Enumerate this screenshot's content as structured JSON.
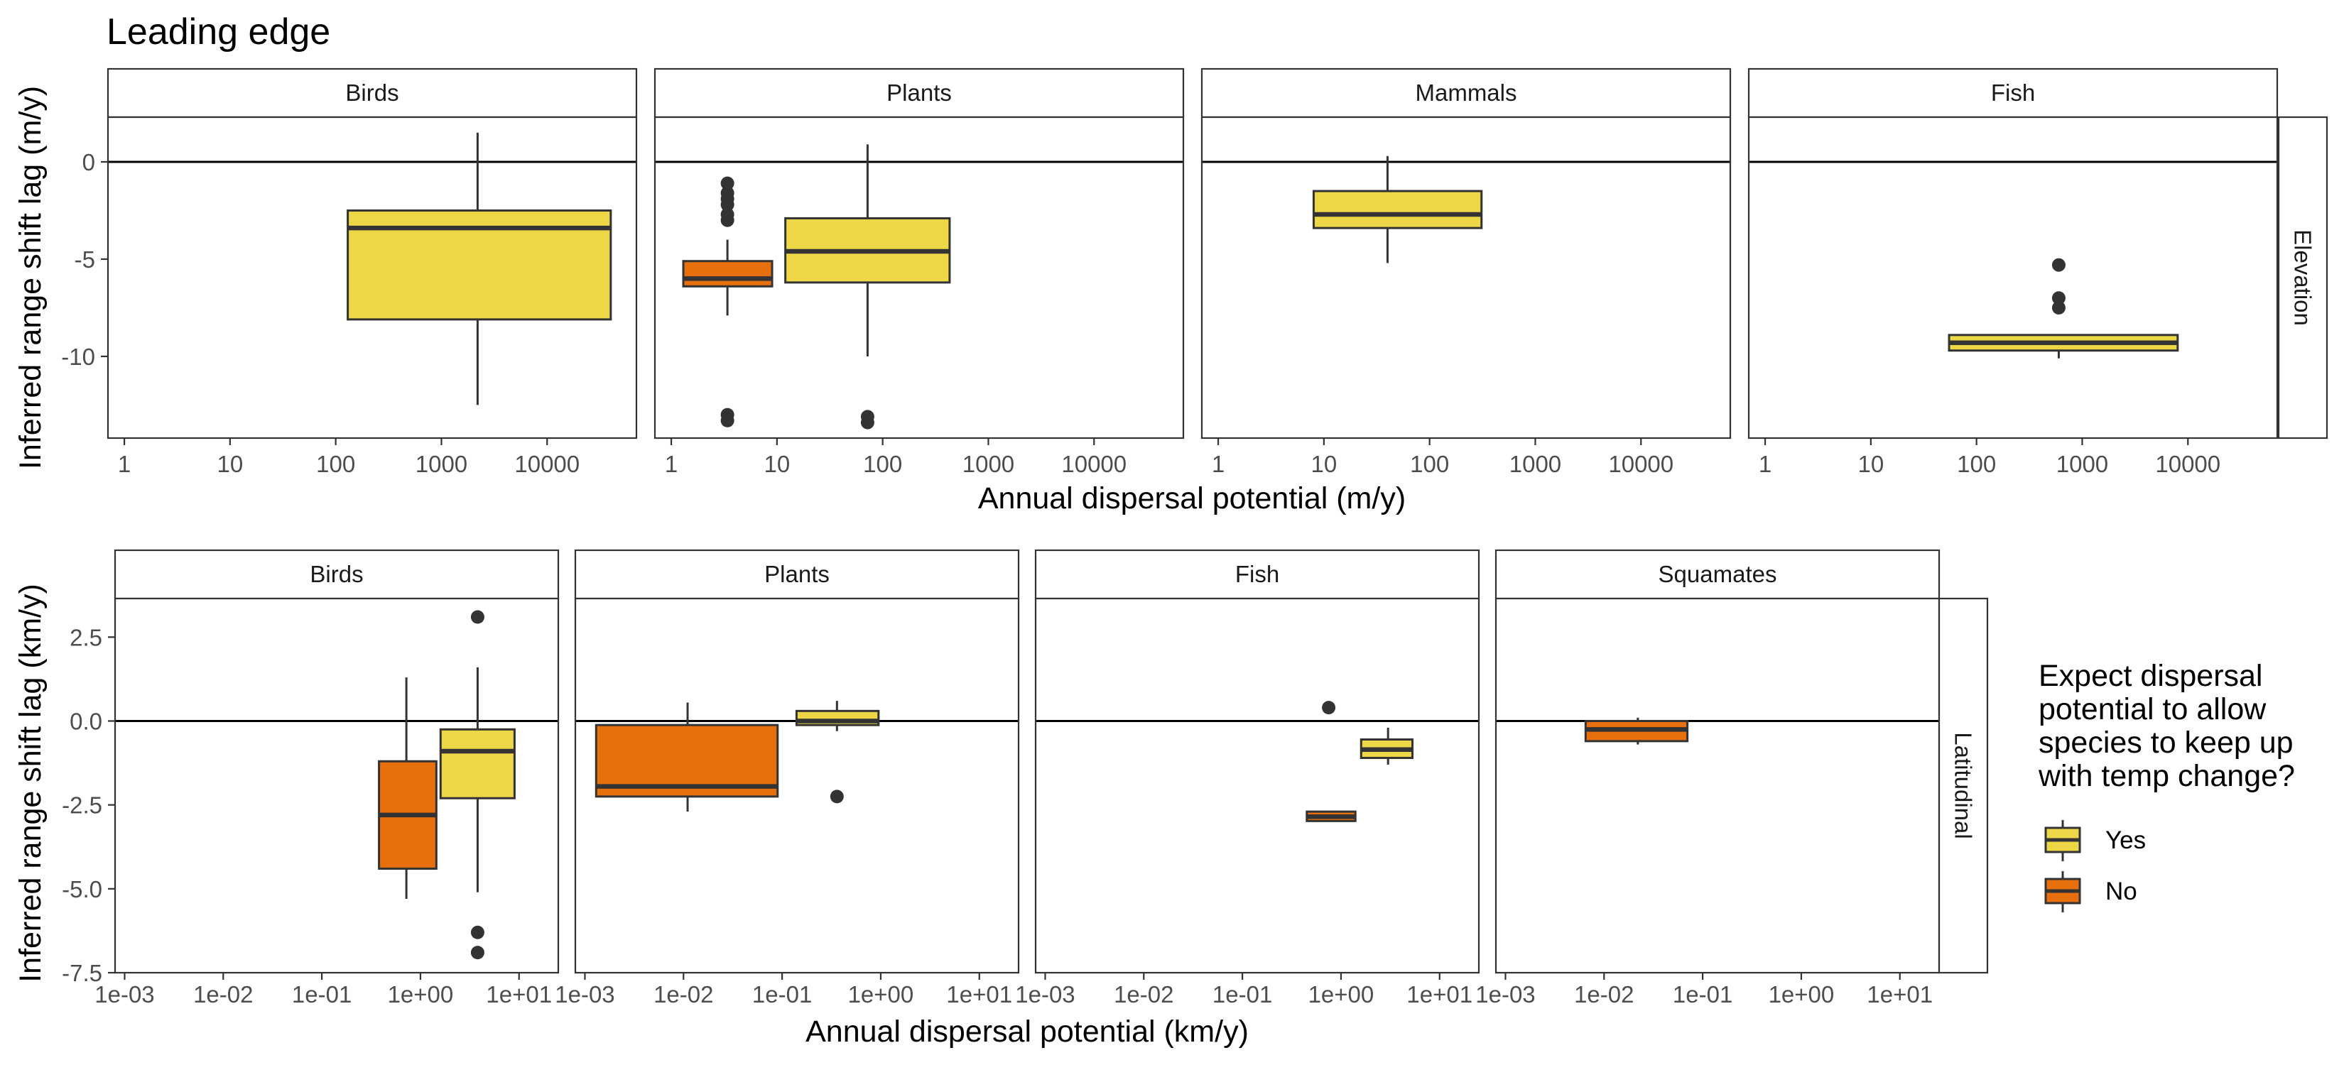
{
  "title": "Leading edge",
  "legend": {
    "title_lines": [
      "Expect dispersal",
      "potential to allow",
      "species to keep up",
      "with temp change?"
    ],
    "items": [
      {
        "label": "Yes",
        "key": "Yes"
      },
      {
        "label": "No",
        "key": "No"
      }
    ]
  },
  "colors": {
    "Yes": "#EDD746",
    "No": "#E8700C"
  },
  "chart_data": [
    {
      "type": "box",
      "row_label": "Elevation",
      "xlabel": "Annual dispersal potential (m/y)",
      "ylabel": "Inferred range shift lag (m/y)",
      "x_scale": "log10",
      "xlim": [
        0.7,
        70000
      ],
      "ylim": [
        -14.2,
        2.3
      ],
      "x_ticks": [
        1,
        10,
        100,
        1000,
        10000
      ],
      "x_tick_labels": [
        "1",
        "10",
        "100",
        "1000",
        "10000"
      ],
      "y_ticks": [
        0,
        -5,
        -10
      ],
      "y_tick_labels": [
        "0",
        "-5",
        "-10"
      ],
      "hline": 0,
      "panels": [
        {
          "name": "Birds",
          "boxes": [
            {
              "group": "Yes",
              "x_low": 130,
              "x_high": 40000,
              "x_mid": 2200,
              "min": -12.5,
              "q1": -8.1,
              "median": -3.4,
              "q3": -2.5,
              "max": 1.5,
              "outliers": []
            }
          ]
        },
        {
          "name": "Plants",
          "boxes": [
            {
              "group": "No",
              "x_low": 1.3,
              "x_high": 9,
              "x_mid": 3.4,
              "min": -7.9,
              "q1": -6.4,
              "median": -6.0,
              "q3": -5.1,
              "max": -4.0,
              "outliers": [
                -1.1,
                -1.6,
                -1.9,
                -2.2,
                -2.7,
                -3.0,
                -13.0,
                -13.3
              ]
            },
            {
              "group": "Yes",
              "x_low": 12,
              "x_high": 430,
              "x_mid": 72,
              "min": -10.0,
              "q1": -6.2,
              "median": -4.6,
              "q3": -2.9,
              "max": 0.9,
              "outliers": [
                -13.1,
                -13.4
              ]
            }
          ]
        },
        {
          "name": "Mammals",
          "boxes": [
            {
              "group": "Yes",
              "x_low": 8,
              "x_high": 310,
              "x_mid": 40,
              "min": -5.2,
              "q1": -3.4,
              "median": -2.7,
              "q3": -1.5,
              "max": 0.3,
              "outliers": []
            }
          ]
        },
        {
          "name": "Fish",
          "boxes": [
            {
              "group": "Yes",
              "x_low": 55,
              "x_high": 8000,
              "x_mid": 600,
              "min": -10.1,
              "q1": -9.7,
              "median": -9.3,
              "q3": -8.9,
              "max": -8.9,
              "outliers": [
                -5.3,
                -7.0,
                -7.5
              ]
            }
          ]
        }
      ]
    },
    {
      "type": "box",
      "row_label": "Latitudinal",
      "xlabel": "Annual dispersal potential (km/y)",
      "ylabel": "Inferred range shift lag (km/y)",
      "x_scale": "log10",
      "xlim": [
        0.0008,
        25
      ],
      "ylim": [
        -7.5,
        3.65
      ],
      "x_ticks": [
        0.001,
        0.01,
        0.1,
        1,
        10
      ],
      "x_tick_labels": [
        "1e-03",
        "1e-02",
        "1e-01",
        "1e+00",
        "1e+01"
      ],
      "y_ticks": [
        2.5,
        0,
        -2.5,
        -5,
        -7.5
      ],
      "y_tick_labels": [
        "2.5",
        "0.0",
        "-2.5",
        "-5.0",
        "-7.5"
      ],
      "hline": 0,
      "panels": [
        {
          "name": "Birds",
          "boxes": [
            {
              "group": "No",
              "x_low": 0.38,
              "x_high": 1.45,
              "x_mid": 0.72,
              "min": -5.3,
              "q1": -4.4,
              "median": -2.8,
              "q3": -1.2,
              "max": 1.3,
              "outliers": []
            },
            {
              "group": "Yes",
              "x_low": 1.6,
              "x_high": 9.0,
              "x_mid": 3.8,
              "min": -5.1,
              "q1": -2.3,
              "median": -0.9,
              "q3": -0.25,
              "max": 1.6,
              "outliers": [
                3.1,
                -6.3,
                -6.9
              ]
            }
          ]
        },
        {
          "name": "Plants",
          "boxes": [
            {
              "group": "No",
              "x_low": 0.0013,
              "x_high": 0.09,
              "x_mid": 0.011,
              "min": -2.7,
              "q1": -2.25,
              "median": -1.95,
              "q3": -0.12,
              "max": 0.55,
              "outliers": []
            },
            {
              "group": "Yes",
              "x_low": 0.14,
              "x_high": 0.95,
              "x_mid": 0.36,
              "min": -0.3,
              "q1": -0.12,
              "median": 0.0,
              "q3": 0.3,
              "max": 0.6,
              "outliers": [
                -2.25
              ]
            }
          ]
        },
        {
          "name": "Fish",
          "boxes": [
            {
              "group": "No",
              "x_low": 0.45,
              "x_high": 1.4,
              "x_mid": 0.75,
              "min": -3.0,
              "q1": -2.98,
              "median": -2.85,
              "q3": -2.7,
              "max": -2.7,
              "outliers": [
                0.4
              ]
            },
            {
              "group": "Yes",
              "x_low": 1.6,
              "x_high": 5.3,
              "x_mid": 3.0,
              "min": -1.3,
              "q1": -1.1,
              "median": -0.85,
              "q3": -0.55,
              "max": -0.2,
              "outliers": []
            }
          ]
        },
        {
          "name": "Squamates",
          "boxes": [
            {
              "group": "No",
              "x_low": 0.0065,
              "x_high": 0.07,
              "x_mid": 0.022,
              "min": -0.7,
              "q1": -0.6,
              "median": -0.25,
              "q3": 0.0,
              "max": 0.1,
              "outliers": []
            }
          ]
        }
      ]
    }
  ]
}
